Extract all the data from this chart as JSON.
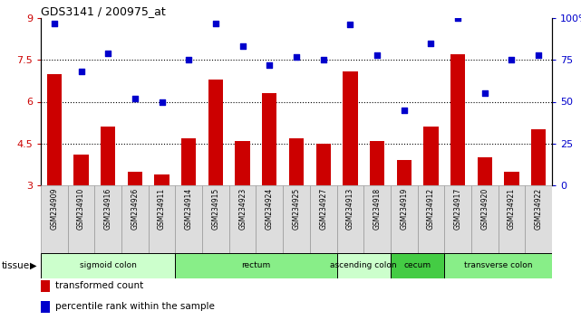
{
  "title": "GDS3141 / 200975_at",
  "samples": [
    "GSM234909",
    "GSM234910",
    "GSM234916",
    "GSM234926",
    "GSM234911",
    "GSM234914",
    "GSM234915",
    "GSM234923",
    "GSM234924",
    "GSM234925",
    "GSM234927",
    "GSM234913",
    "GSM234918",
    "GSM234919",
    "GSM234912",
    "GSM234917",
    "GSM234920",
    "GSM234921",
    "GSM234922"
  ],
  "bar_values": [
    7.0,
    4.1,
    5.1,
    3.5,
    3.4,
    4.7,
    6.8,
    4.6,
    6.3,
    4.7,
    4.5,
    7.1,
    4.6,
    3.9,
    5.1,
    7.7,
    4.0,
    3.5,
    5.0
  ],
  "dot_values": [
    97,
    68,
    79,
    52,
    50,
    75,
    97,
    83,
    72,
    77,
    75,
    96,
    78,
    45,
    85,
    100,
    55,
    75,
    78
  ],
  "bar_color": "#cc0000",
  "dot_color": "#0000cc",
  "bar_bottom": 3.0,
  "ylim_left": [
    3.0,
    9.0
  ],
  "ylim_right": [
    0,
    100
  ],
  "yticks_left": [
    3.0,
    4.5,
    6.0,
    7.5,
    9.0
  ],
  "yticks_right": [
    0,
    25,
    50,
    75,
    100
  ],
  "ytick_labels_left": [
    "3",
    "4.5",
    "6",
    "7.5",
    "9"
  ],
  "ytick_labels_right": [
    "0",
    "25",
    "50",
    "75",
    "100%"
  ],
  "hlines": [
    4.5,
    6.0,
    7.5
  ],
  "tissue_groups": [
    {
      "label": "sigmoid colon",
      "start": 0,
      "end": 5,
      "color": "#ccffcc"
    },
    {
      "label": "rectum",
      "start": 5,
      "end": 11,
      "color": "#88ee88"
    },
    {
      "label": "ascending colon",
      "start": 11,
      "end": 13,
      "color": "#ccffcc"
    },
    {
      "label": "cecum",
      "start": 13,
      "end": 15,
      "color": "#44cc44"
    },
    {
      "label": "transverse colon",
      "start": 15,
      "end": 19,
      "color": "#88ee88"
    }
  ],
  "legend_items": [
    {
      "label": "transformed count",
      "color": "#cc0000"
    },
    {
      "label": "percentile rank within the sample",
      "color": "#0000cc"
    }
  ],
  "tissue_label": "tissue",
  "box_facecolor": "#dddddd",
  "box_edgecolor": "#999999",
  "plot_bg": "#ffffff"
}
